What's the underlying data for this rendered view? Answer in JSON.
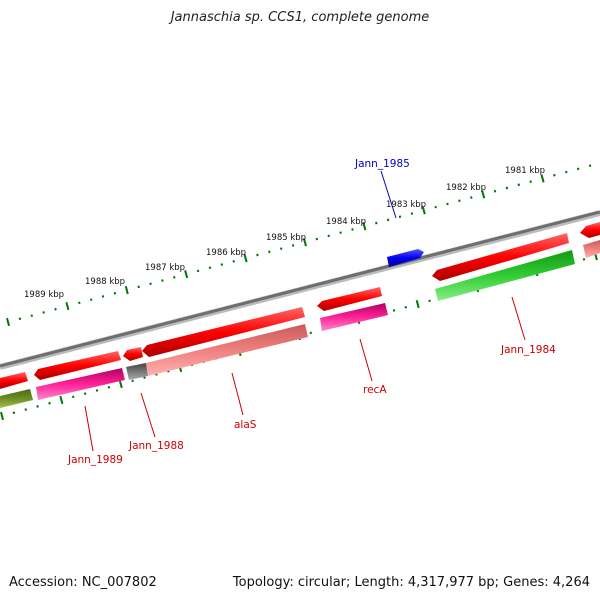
{
  "title": "Jannaschia sp. CCS1, complete genome",
  "footer": {
    "accession": "Accession: NC_007802",
    "summary": "Topology: circular; Length: 4,317,977 bp; Genes: 4,264"
  },
  "kbp_labels": [
    "1981 kbp",
    "1982 kbp",
    "1983 kbp",
    "1984 kbp",
    "1985 kbp",
    "1986 kbp",
    "1987 kbp",
    "1988 kbp",
    "1989 kbp"
  ],
  "gene_labels": [
    "Jann_1985",
    "Jann_1984",
    "recA",
    "alaS",
    "Jann_1988",
    "Jann_1989"
  ],
  "colors": {
    "forward_cds": "#ff0000",
    "reverse_cds": "#e01010",
    "feature_blue": "#0000ee",
    "label_blue": "#0000cc",
    "label_red": "#cc0000",
    "tick_green": "#007700",
    "magenta": "#ff2299",
    "salmon": "#f08080",
    "green": "#33cc33",
    "olive": "#6b8e23",
    "backbone": "#777777"
  }
}
